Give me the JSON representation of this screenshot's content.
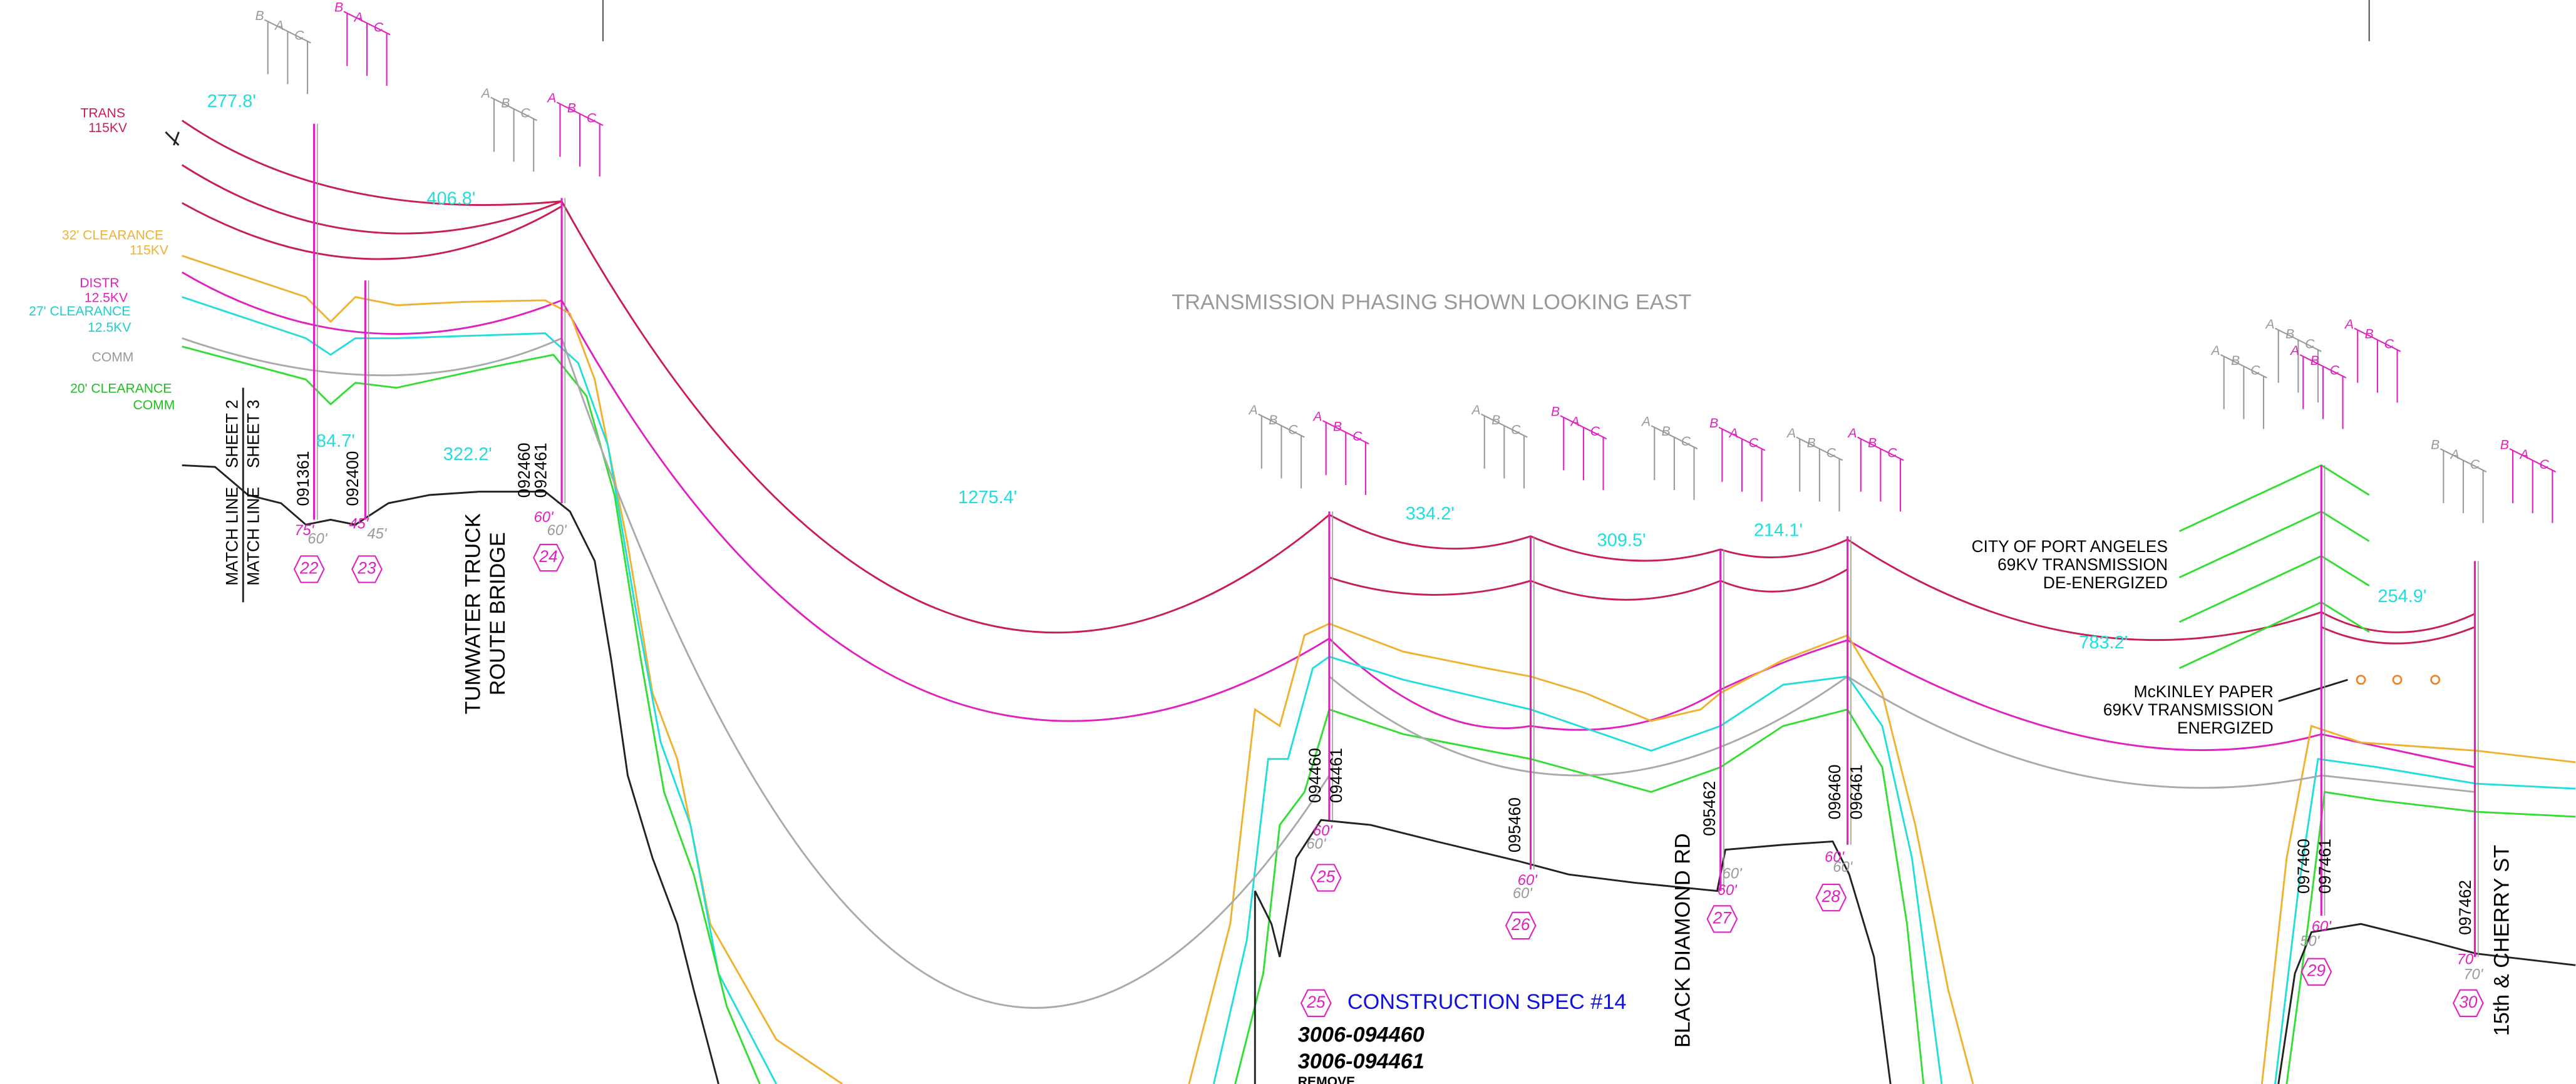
{
  "legend": {
    "trans": [
      "TRANS",
      "115KV"
    ],
    "clear115": [
      "32' CLEARANCE",
      "115KV"
    ],
    "distr": [
      "DISTR",
      "12.5KV"
    ],
    "clear125": [
      "27' CLEARANCE",
      "12.5KV"
    ],
    "comm": [
      "COMM"
    ],
    "clearcomm": [
      "20' CLEARANCE",
      "COMM"
    ]
  },
  "match_line": [
    "MATCH LINE",
    "SHEET 2",
    "MATCH LINE",
    "SHEET 3"
  ],
  "spans": [
    "277.8'",
    "406.8'",
    "84.7'",
    "322.2'",
    "1275.4'",
    "334.2'",
    "309.5'",
    "214.1'",
    "783.2'",
    "254.9'"
  ],
  "poles": [
    {
      "number": "22",
      "ids": [
        "091361"
      ],
      "heights": [
        "75'",
        "60'"
      ]
    },
    {
      "number": "23",
      "ids": [
        "092400"
      ],
      "heights": [
        "45'",
        "45'"
      ]
    },
    {
      "number": "24",
      "ids": [
        "092460",
        "092461"
      ],
      "heights": [
        "60'",
        "60'"
      ]
    },
    {
      "number": "25",
      "ids": [
        "094460",
        "094461"
      ],
      "heights": [
        "60'",
        "60'"
      ]
    },
    {
      "number": "26",
      "ids": [
        "095460"
      ],
      "heights": [
        "60'",
        "60'"
      ]
    },
    {
      "number": "27",
      "ids": [
        "095462"
      ],
      "heights": [
        "60'",
        "60'"
      ]
    },
    {
      "number": "28",
      "ids": [
        "096460",
        "096461"
      ],
      "heights": [
        "60'",
        "60'"
      ]
    },
    {
      "number": "29",
      "ids": [
        "097460",
        "097461"
      ],
      "heights": [
        "60'",
        "50'"
      ]
    },
    {
      "number": "30",
      "ids": [
        "097462"
      ],
      "heights": [
        "70'",
        "70'"
      ]
    }
  ],
  "roads": [
    [
      "TUMWATER TRUCK",
      "ROUTE BRIDGE"
    ],
    [
      "BLACK DIAMOND RD"
    ],
    [
      "15th & CHERRY ST"
    ]
  ],
  "phasing_note": "TRANSMISSION PHASING SHOWN LOOKING EAST",
  "port_angeles": [
    "CITY OF PORT ANGELES",
    "69KV TRANSMISSION",
    "DE-ENERGIZED"
  ],
  "mckinley": [
    "McKINLEY PAPER",
    "69KV TRANSMISSION",
    "ENERGIZED"
  ],
  "spec": {
    "pole": "25",
    "title": "CONSTRUCTION SPEC #14",
    "lines": [
      "3006-094460",
      "3006-094461",
      "REMOVE"
    ]
  },
  "phasing": [
    {
      "color": "gray",
      "letters": [
        "B",
        "A",
        "C"
      ]
    },
    {
      "color": "magenta",
      "letters": [
        "B",
        "A",
        "C"
      ]
    },
    {
      "color": "gray",
      "letters": [
        "A",
        "B",
        "C"
      ]
    },
    {
      "color": "magenta",
      "letters": [
        "A",
        "B",
        "C"
      ]
    },
    {
      "color": "gray",
      "letters": [
        "A",
        "B",
        "C"
      ]
    },
    {
      "color": "magenta",
      "letters": [
        "A",
        "B",
        "C"
      ]
    },
    {
      "color": "gray",
      "letters": [
        "A",
        "B",
        "C"
      ]
    },
    {
      "color": "magenta",
      "letters": [
        "B",
        "A",
        "C"
      ]
    },
    {
      "color": "gray",
      "letters": [
        "A",
        "B",
        "C"
      ]
    },
    {
      "color": "magenta",
      "letters": [
        "B",
        "A",
        "C"
      ]
    },
    {
      "color": "gray",
      "letters": [
        "A",
        "B",
        "C"
      ]
    },
    {
      "color": "magenta",
      "letters": [
        "A",
        "B",
        "C"
      ]
    },
    {
      "color": "gray",
      "letters": [
        "A",
        "B",
        "C"
      ]
    },
    {
      "color": "gray",
      "letters": [
        "A",
        "B",
        "C"
      ]
    },
    {
      "color": "magenta",
      "letters": [
        "A",
        "B",
        "C"
      ]
    },
    {
      "color": "magenta",
      "letters": [
        "A",
        "B",
        "C"
      ]
    },
    {
      "color": "gray",
      "letters": [
        "B",
        "A",
        "C"
      ]
    },
    {
      "color": "magenta",
      "letters": [
        "B",
        "A",
        "C"
      ]
    }
  ]
}
